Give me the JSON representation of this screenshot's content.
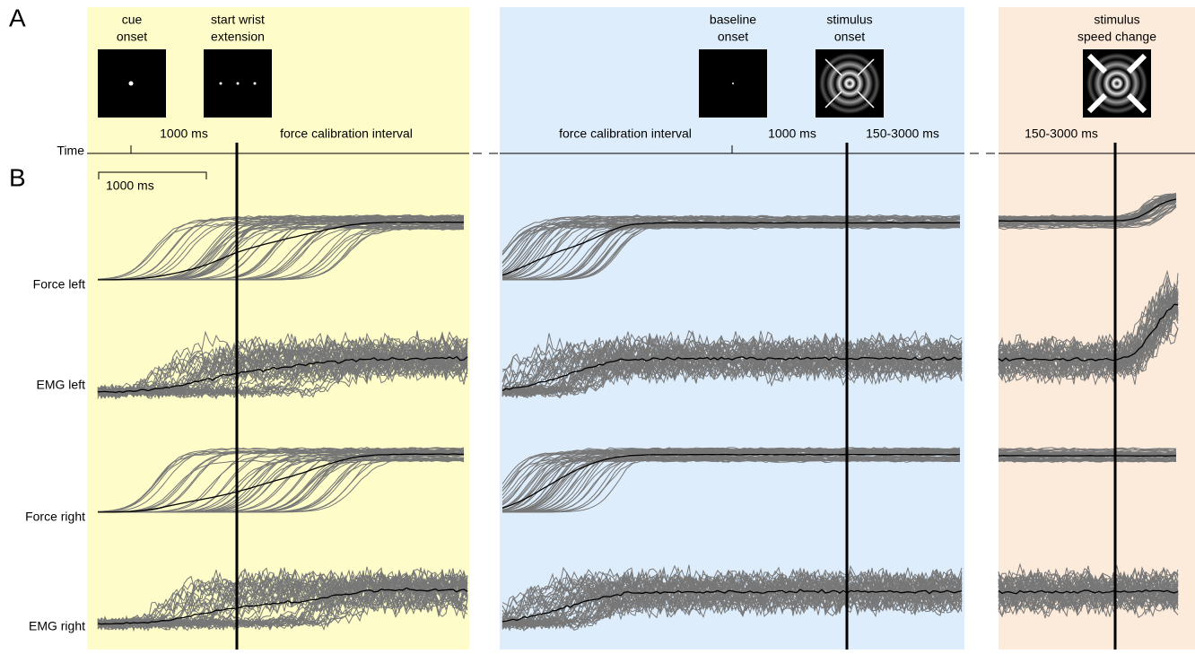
{
  "panel_labels": [
    "A",
    "B"
  ],
  "events": [
    {
      "lines": [
        "cue",
        "onset"
      ]
    },
    {
      "lines": [
        "start  wrist",
        "extension"
      ]
    },
    {
      "lines": [
        "baseline",
        "onset"
      ]
    },
    {
      "lines": [
        "stimulus",
        "onset"
      ]
    },
    {
      "lines": [
        "stimulus",
        "speed  change"
      ]
    }
  ],
  "time_axis": {
    "label": "Time",
    "segments": [
      "1000   ms",
      "force   calibration   interval",
      "force   calibration   interval",
      "1000   ms",
      "150-3000   ms",
      "150-3000   ms"
    ]
  },
  "scale_bar": "1000 ms",
  "rows": [
    "Force   left",
    "EMG   left",
    "Force   right",
    "EMG   right"
  ]
}
